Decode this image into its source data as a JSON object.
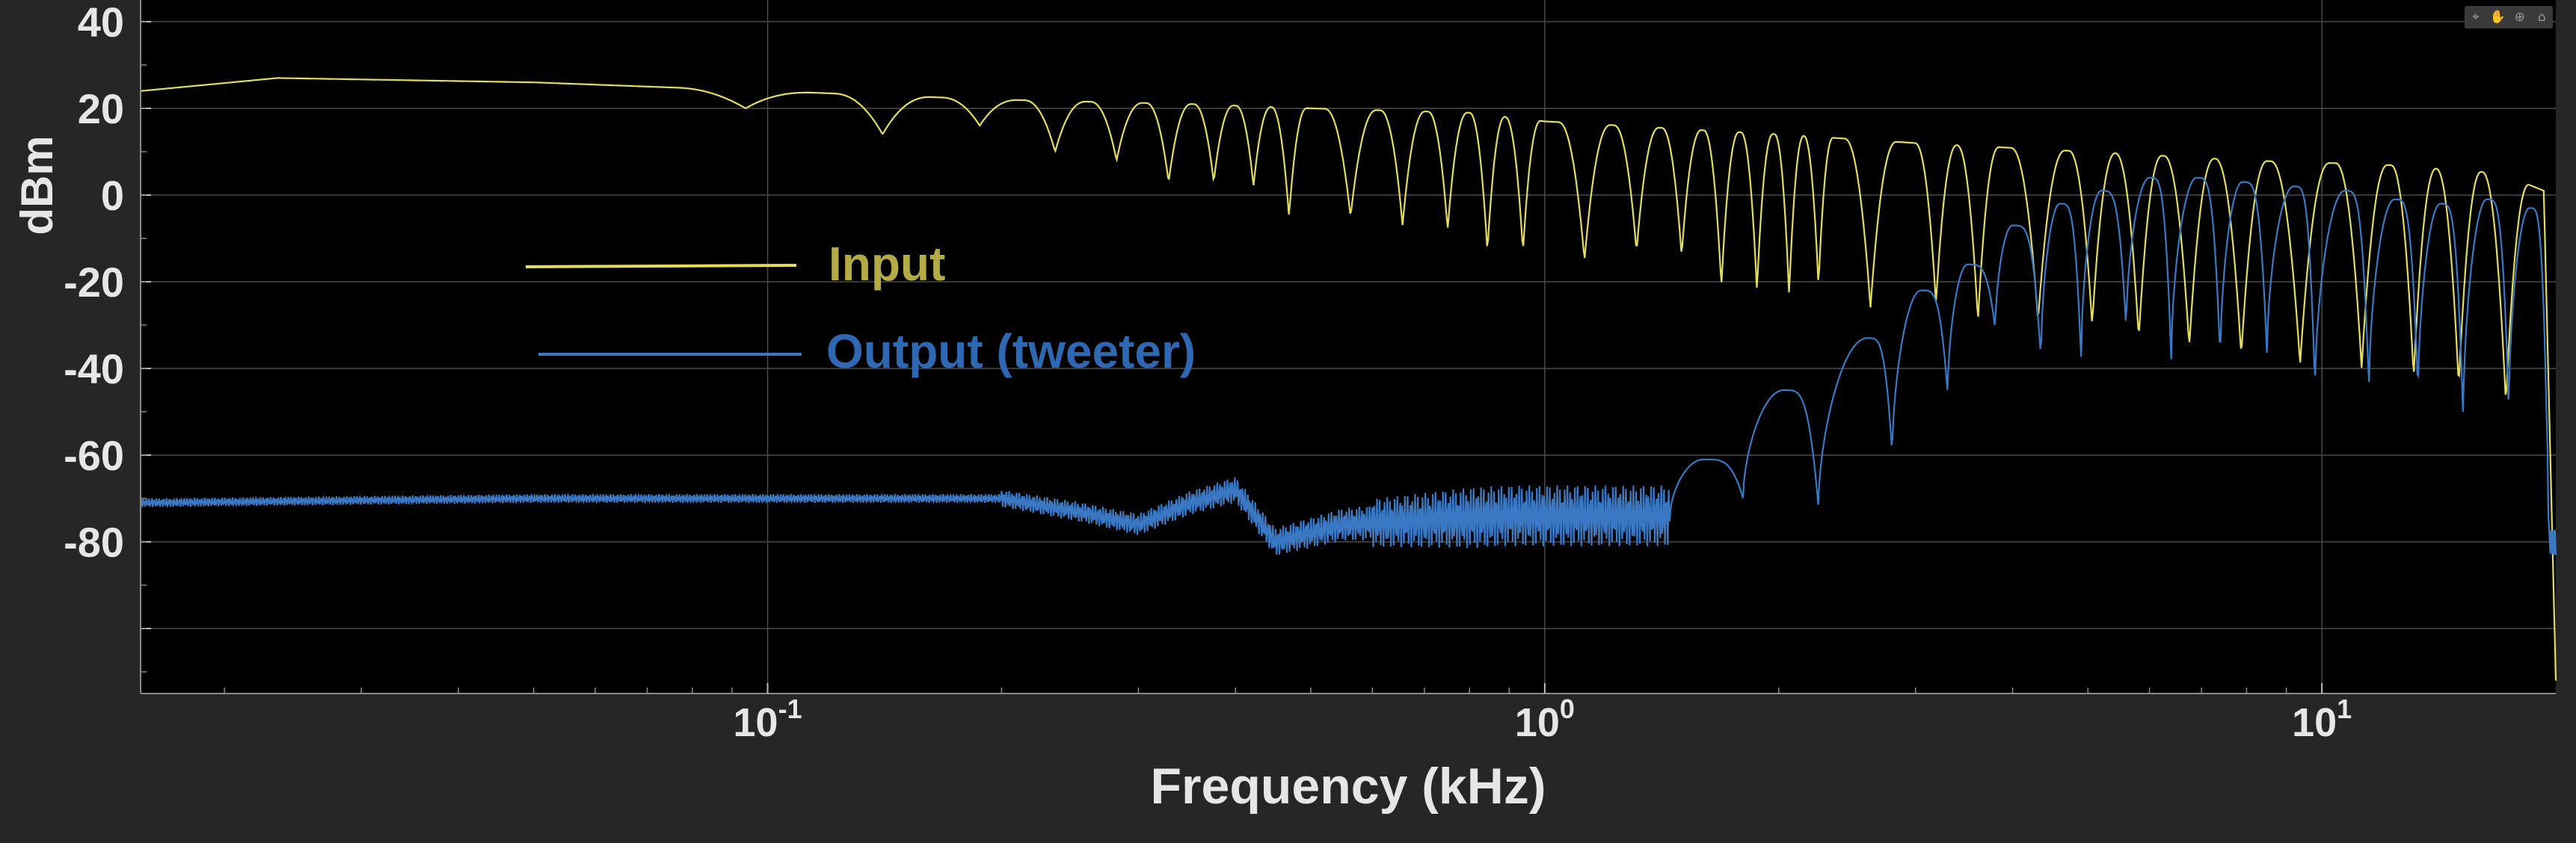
{
  "toolbar": {
    "buttons": [
      {
        "icon": "data-tips-icon",
        "glyph": "⌖"
      },
      {
        "icon": "pan-icon",
        "glyph": "✋"
      },
      {
        "icon": "zoom-in-icon",
        "glyph": "⊕"
      },
      {
        "icon": "restore-view-icon",
        "glyph": "⌂"
      }
    ]
  },
  "chart_data": {
    "type": "line",
    "xlabel": "Frequency (kHz)",
    "ylabel": "dBm",
    "xscale": "log",
    "xlim": [
      0.0156,
      20
    ],
    "ylim": [
      -115,
      45
    ],
    "grid": true,
    "legend_placement": "upper-left",
    "x_ticks": [
      {
        "value": 0.1,
        "base": "10",
        "exp": "-1"
      },
      {
        "value": 1,
        "base": "10",
        "exp": "0"
      },
      {
        "value": 10,
        "base": "10",
        "exp": "1"
      }
    ],
    "y_ticks": [
      {
        "value": 40,
        "label": "40"
      },
      {
        "value": 20,
        "label": "20"
      },
      {
        "value": 0,
        "label": "0"
      },
      {
        "value": -20,
        "label": "-20"
      },
      {
        "value": -40,
        "label": "-40"
      },
      {
        "value": -60,
        "label": "-60"
      },
      {
        "value": -80,
        "label": "-80"
      },
      {
        "value": -100,
        "label": ""
      }
    ],
    "colors": {
      "background": "#000000",
      "figure": "#262626",
      "grid": "#4a4a4a",
      "axis_text": "#e6e6e6"
    },
    "series": [
      {
        "name": "Input",
        "color": "#e2dd5e",
        "legend_color": "#b3ab45",
        "notch_freqs_khz": [
          0.0937,
          0.1406,
          0.1875,
          0.2344,
          0.2812,
          0.3281,
          0.375,
          0.4219,
          0.4687,
          0.5625,
          0.6562,
          0.75,
          0.8437,
          0.9375,
          1.125,
          1.3125,
          1.5,
          1.6875,
          1.875,
          2.0625,
          2.25,
          2.625,
          3.1875,
          3.6094,
          4.3125,
          5.0625,
          5.8125,
          6.75,
          7.875,
          9.375,
          11.25,
          13.125,
          15.0,
          17.25
        ],
        "notch_depths_db": [
          20,
          14,
          16,
          10,
          8,
          3,
          3,
          2,
          -5,
          -5,
          -7,
          -8,
          -13,
          -13,
          -15,
          -13,
          -14,
          -21,
          -22,
          -23,
          -21,
          -26,
          -25,
          -29,
          -29,
          -30,
          -33,
          -35,
          -37,
          -39,
          -40,
          -42,
          -44,
          -48
        ],
        "envelope_points": [
          [
            0.0156,
            24
          ],
          [
            0.0234,
            27
          ],
          [
            0.05,
            26
          ],
          [
            0.1,
            24
          ],
          [
            0.2,
            22
          ],
          [
            0.35,
            21
          ],
          [
            0.5,
            20
          ],
          [
            0.8,
            19
          ],
          [
            1.0,
            17
          ],
          [
            2.0,
            14
          ],
          [
            3.0,
            12
          ],
          [
            5.0,
            10
          ],
          [
            8.0,
            8
          ],
          [
            12.0,
            7
          ],
          [
            17.0,
            5
          ],
          [
            19.3,
            1
          ],
          [
            19.8,
            -80
          ],
          [
            20.0,
            -112
          ]
        ]
      },
      {
        "name": "Output (tweeter)",
        "color": "#3a78c4",
        "legend_color": "#2e68b2",
        "noise_floor_points": [
          [
            0.0156,
            -71
          ],
          [
            0.05,
            -70
          ],
          [
            0.1,
            -70
          ],
          [
            0.2,
            -70
          ],
          [
            0.25,
            -73
          ],
          [
            0.3,
            -76
          ],
          [
            0.35,
            -71
          ],
          [
            0.4,
            -68
          ],
          [
            0.45,
            -80
          ],
          [
            0.55,
            -76
          ],
          [
            0.7,
            -75
          ],
          [
            0.9,
            -74
          ],
          [
            1.2,
            -74
          ],
          [
            1.4,
            -74
          ]
        ],
        "lobe_peaks": [
          [
            1.6,
            -61
          ],
          [
            2.03,
            -45
          ],
          [
            2.6,
            -33
          ],
          [
            3.05,
            -22
          ],
          [
            3.5,
            -16
          ],
          [
            4.0,
            -7
          ],
          [
            4.6,
            -2
          ],
          [
            5.2,
            1
          ],
          [
            6.0,
            4
          ],
          [
            6.9,
            4
          ],
          [
            7.9,
            3
          ],
          [
            9.2,
            2
          ],
          [
            10.7,
            1
          ],
          [
            12.4,
            -1
          ],
          [
            14.2,
            -2
          ],
          [
            16.3,
            -1
          ],
          [
            18.5,
            -3
          ]
        ],
        "lobe_notches": [
          [
            1.8,
            -70
          ],
          [
            2.25,
            -72
          ],
          [
            2.8,
            -60
          ],
          [
            3.3,
            -46
          ],
          [
            3.8,
            -31
          ],
          [
            4.35,
            -38
          ],
          [
            4.9,
            -38
          ],
          [
            5.6,
            -31
          ],
          [
            6.4,
            -38
          ],
          [
            7.4,
            -38
          ],
          [
            8.5,
            -37
          ],
          [
            9.8,
            -45
          ],
          [
            11.5,
            -45
          ],
          [
            13.3,
            -46
          ],
          [
            15.2,
            -52
          ],
          [
            17.4,
            -50
          ],
          [
            19.6,
            -80
          ],
          [
            20.0,
            -78
          ]
        ]
      }
    ]
  }
}
